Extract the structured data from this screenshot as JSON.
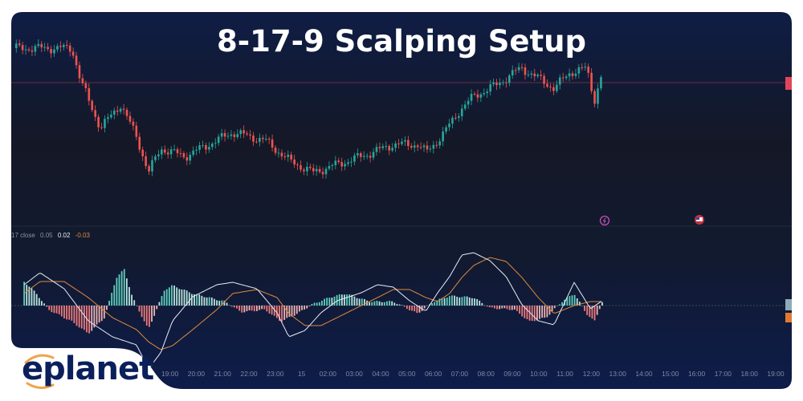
{
  "title": "8-17-9 Scalping Setup",
  "brand": {
    "name": "eplanet",
    "text_color": "#0b1f5c",
    "accent_color": "#f0a24a"
  },
  "icons": {
    "pane_icon_1": "lightning-circle-icon",
    "pane_icon_2": "us-flag-icon"
  },
  "colors": {
    "up": "#26a69a",
    "down": "#ef5350",
    "macd_line": "#e8ecf5",
    "signal_line": "#e08a3c",
    "hist_up": "#5fd0bd",
    "hist_down": "#f07b7b",
    "price_line": "#6a2c44",
    "background_top": "#0f1d45",
    "background_mid": "#141826",
    "background_bottom": "#0d1c4a"
  },
  "chart_data": [
    {
      "type": "candlestick",
      "title": "",
      "x_tick_labels": [
        "19:00",
        "20:00",
        "21:00",
        "22:00",
        "23:00",
        "15",
        "02:00",
        "03:00",
        "04:00",
        "05:00",
        "06:00",
        "07:00",
        "08:00",
        "09:00",
        "10:00",
        "11:00",
        "12:00",
        "13:00",
        "14:00",
        "15:00",
        "16:00",
        "17:00",
        "18:00",
        "19:00"
      ],
      "price_axis_labels": "hidden",
      "close_path_relative": {
        "time": [
          "13:10",
          "15:17",
          "15:36",
          "16:22",
          "17:07",
          "17:44",
          "18:11",
          "18:39",
          "19:34",
          "20:29",
          "21:23",
          "22:37",
          "23:31",
          "01:26",
          "02:21",
          "03:16",
          "04:29",
          "05:24",
          "05:43",
          "06:19",
          "06:56",
          "07:32",
          "08:27",
          "09:04",
          "09:22",
          "10:35",
          "11:12",
          "11:49",
          "12:07",
          "12:25"
        ],
        "value": [
          240,
          240,
          200,
          140,
          170,
          130,
          85,
          115,
          105,
          120,
          135,
          125,
          100,
          85,
          95,
          105,
          120,
          120,
          110,
          130,
          160,
          180,
          195,
          210,
          215,
          190,
          210,
          215,
          175,
          210
        ]
      },
      "grid": false
    },
    {
      "type": "macd",
      "legend": {
        "label": "17 close",
        "histogram": "0.05",
        "macd": "0.02",
        "signal": "-0.03"
      },
      "lines": {
        "time": [
          "13:28",
          "14:04",
          "14:59",
          "15:54",
          "16:49",
          "17:44",
          "18:11",
          "18:39",
          "19:06",
          "19:52",
          "20:47",
          "21:23",
          "22:18",
          "23:04",
          "23:31",
          "01:08",
          "01:44",
          "02:21",
          "03:16",
          "03:53",
          "04:29",
          "05:06",
          "05:43",
          "06:10",
          "06:37",
          "07:05",
          "07:32",
          "08:09",
          "08:46",
          "09:22",
          "09:59",
          "10:35",
          "11:21",
          "11:58",
          "12:25"
        ],
        "macd": [
          0.052,
          0.082,
          0.042,
          -0.038,
          -0.078,
          -0.098,
          -0.158,
          -0.118,
          -0.038,
          0.022,
          0.052,
          0.058,
          0.042,
          -0.018,
          -0.078,
          -0.062,
          -0.018,
          0.012,
          0.032,
          0.052,
          0.046,
          0.012,
          -0.014,
          0.032,
          0.072,
          0.126,
          0.132,
          0.112,
          0.072,
          0.002,
          -0.038,
          -0.048,
          0.058,
          -0.008,
          0.012
        ],
        "signal": [
          0.03,
          0.06,
          0.06,
          0.02,
          -0.03,
          -0.06,
          -0.09,
          -0.11,
          -0.1,
          -0.06,
          -0.01,
          0.03,
          0.04,
          0.02,
          -0.02,
          -0.05,
          -0.05,
          -0.03,
          0.0,
          0.02,
          0.04,
          0.04,
          0.02,
          0.01,
          0.03,
          0.07,
          0.1,
          0.12,
          0.11,
          0.07,
          0.02,
          -0.02,
          0.0,
          0.01,
          0.01
        ]
      },
      "histogram": {
        "time": [
          "13:28",
          "13:56",
          "14:23",
          "15:17",
          "15:54",
          "16:31",
          "16:58",
          "17:16",
          "17:35",
          "18:11",
          "18:48",
          "19:06",
          "19:52",
          "20:29",
          "21:05",
          "21:42",
          "22:37",
          "23:13",
          "23:50",
          "01:26",
          "02:03",
          "02:40",
          "03:35",
          "04:29",
          "05:24",
          "06:01",
          "06:37",
          "07:32",
          "08:09",
          "09:04",
          "09:40",
          "10:17",
          "10:53",
          "11:21",
          "11:49",
          "12:07",
          "12:25"
        ],
        "value": [
          0.06,
          0.03,
          -0.01,
          -0.04,
          -0.07,
          -0.03,
          0.07,
          0.09,
          0.02,
          -0.06,
          0.04,
          0.05,
          0.03,
          0.02,
          0.01,
          -0.016,
          -0.01,
          -0.04,
          -0.02,
          0.004,
          0.02,
          0.03,
          0.01,
          0.01,
          -0.02,
          0.01,
          0.024,
          0.02,
          -0.006,
          -0.01,
          -0.04,
          -0.03,
          0.01,
          0.03,
          -0.02,
          -0.04,
          0.01
        ]
      }
    }
  ]
}
